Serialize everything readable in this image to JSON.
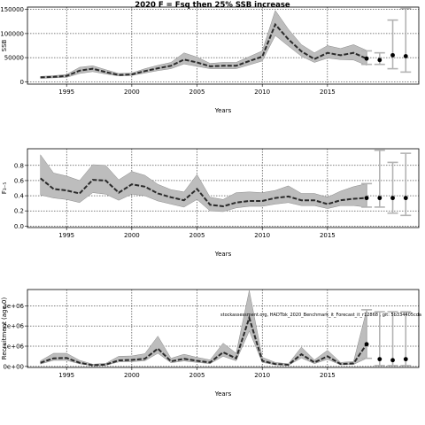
{
  "chart_data": [
    {
      "type": "line",
      "title": "2020 F = Fsq then 25% SSB increase",
      "ylabel": "SSB",
      "xlabel": "Years",
      "xlim": [
        1992,
        2022
      ],
      "ylim": [
        -5000,
        155000
      ],
      "x_ticks": [
        1995,
        2000,
        2005,
        2010,
        2015
      ],
      "y_ticks": [
        0,
        50000,
        100000,
        150000
      ],
      "y_tick_labels": [
        "0",
        "50000",
        "100000",
        "150000"
      ],
      "grid": true,
      "x": [
        1993,
        1994,
        1995,
        1996,
        1997,
        1998,
        1999,
        2000,
        2001,
        2002,
        2003,
        2004,
        2005,
        2006,
        2007,
        2008,
        2009,
        2010,
        2011,
        2012,
        2013,
        2014,
        2015,
        2016,
        2017,
        2018
      ],
      "median": [
        9000,
        10000,
        12000,
        23000,
        27000,
        20000,
        14000,
        15000,
        22000,
        28000,
        33000,
        46000,
        40000,
        32000,
        33000,
        33000,
        43000,
        52000,
        119000,
        88000,
        63000,
        47000,
        60000,
        55000,
        60000,
        48000
      ],
      "lower": [
        7000,
        8000,
        9000,
        17000,
        21000,
        16000,
        12000,
        13000,
        18000,
        23000,
        27000,
        37000,
        32000,
        27000,
        27000,
        27000,
        35000,
        43000,
        96000,
        74000,
        53000,
        40000,
        49000,
        46000,
        45000,
        34000
      ],
      "upper": [
        11000,
        12500,
        15000,
        30000,
        33000,
        25000,
        17000,
        18000,
        27000,
        34000,
        40000,
        60000,
        51000,
        38000,
        40000,
        40000,
        52000,
        64000,
        148000,
        109000,
        77000,
        60000,
        75000,
        69000,
        77000,
        65000
      ],
      "projection": [
        {
          "x": 2018,
          "median": 48000,
          "lower": 36000,
          "upper": 64000
        },
        {
          "x": 2019,
          "median": 45000,
          "lower": 36000,
          "upper": 60000
        },
        {
          "x": 2020,
          "median": 55000,
          "lower": 27000,
          "upper": 128000
        },
        {
          "x": 2021,
          "median": 53000,
          "lower": 20000,
          "upper": 152000
        }
      ]
    },
    {
      "type": "line",
      "title": "",
      "ylabel": "F₃₋₅",
      "xlabel": "Years",
      "xlim": [
        1992,
        2022
      ],
      "ylim": [
        -0.02,
        1.02
      ],
      "x_ticks": [
        1995,
        2000,
        2005,
        2010,
        2015
      ],
      "y_ticks": [
        0.0,
        0.2,
        0.4,
        0.6,
        0.8
      ],
      "y_tick_labels": [
        "0.0",
        "0.2",
        "0.4",
        "0.6",
        "0.8"
      ],
      "grid": true,
      "x": [
        1993,
        1994,
        1995,
        1996,
        1997,
        1998,
        1999,
        2000,
        2001,
        2002,
        2003,
        2004,
        2005,
        2006,
        2007,
        2008,
        2009,
        2010,
        2011,
        2012,
        2013,
        2014,
        2015,
        2016,
        2017,
        2018
      ],
      "median": [
        0.63,
        0.49,
        0.47,
        0.43,
        0.61,
        0.6,
        0.44,
        0.55,
        0.52,
        0.43,
        0.38,
        0.34,
        0.49,
        0.28,
        0.26,
        0.31,
        0.33,
        0.33,
        0.37,
        0.39,
        0.34,
        0.34,
        0.29,
        0.34,
        0.36,
        0.37
      ],
      "lower": [
        0.41,
        0.37,
        0.35,
        0.31,
        0.44,
        0.42,
        0.34,
        0.42,
        0.4,
        0.33,
        0.29,
        0.25,
        0.35,
        0.2,
        0.19,
        0.24,
        0.26,
        0.26,
        0.29,
        0.31,
        0.27,
        0.27,
        0.23,
        0.27,
        0.27,
        0.25
      ],
      "upper": [
        0.94,
        0.7,
        0.66,
        0.6,
        0.81,
        0.8,
        0.61,
        0.72,
        0.67,
        0.55,
        0.48,
        0.45,
        0.68,
        0.38,
        0.35,
        0.44,
        0.45,
        0.44,
        0.47,
        0.53,
        0.43,
        0.43,
        0.38,
        0.46,
        0.52,
        0.56
      ],
      "projection": [
        {
          "x": 2018,
          "median": 0.37,
          "lower": 0.25,
          "upper": 0.56
        },
        {
          "x": 2019,
          "median": 0.37,
          "lower": 0.25,
          "upper": 1.0
        },
        {
          "x": 2020,
          "median": 0.37,
          "lower": 0.17,
          "upper": 0.84
        },
        {
          "x": 2021,
          "median": 0.37,
          "lower": 0.14,
          "upper": 0.96
        }
      ]
    },
    {
      "type": "line",
      "title": "",
      "ylabel": "Recruitment (age 0)",
      "xlabel": "Years",
      "xlim": [
        1992,
        2022
      ],
      "ylim": [
        -50000,
        3800000
      ],
      "x_ticks": [
        1995,
        2000,
        2005,
        2010,
        2015
      ],
      "y_ticks": [
        0,
        1000000,
        2000000,
        3000000
      ],
      "y_tick_labels": [
        "0e+00",
        "1e+06",
        "2e+06",
        "3e+06"
      ],
      "grid": true,
      "annotation": "stockassessment.org, HADTbk_2020_Benchmark_it_Forecast_it_r12868 , git: 5b334405cda",
      "x": [
        1993,
        1994,
        1995,
        1996,
        1997,
        1998,
        1999,
        2000,
        2001,
        2002,
        2003,
        2004,
        2005,
        2006,
        2007,
        2008,
        2009,
        2010,
        2011,
        2012,
        2013,
        2014,
        2015,
        2016,
        2017,
        2018
      ],
      "median": [
        180000,
        400000,
        420000,
        180000,
        60000,
        90000,
        300000,
        320000,
        380000,
        880000,
        250000,
        380000,
        280000,
        200000,
        700000,
        400000,
        2400000,
        280000,
        120000,
        80000,
        600000,
        200000,
        500000,
        120000,
        150000,
        1100000
      ],
      "lower": [
        120000,
        300000,
        300000,
        130000,
        40000,
        60000,
        220000,
        240000,
        280000,
        650000,
        180000,
        270000,
        200000,
        140000,
        500000,
        280000,
        1750000,
        200000,
        80000,
        55000,
        420000,
        140000,
        350000,
        80000,
        100000,
        400000
      ],
      "upper": [
        280000,
        650000,
        650000,
        300000,
        110000,
        150000,
        500000,
        520000,
        630000,
        1500000,
        400000,
        600000,
        450000,
        320000,
        1150000,
        650000,
        3750000,
        450000,
        200000,
        130000,
        950000,
        320000,
        800000,
        200000,
        240000,
        2800000
      ],
      "projection": [
        {
          "x": 2018,
          "median": 1100000,
          "lower": 400000,
          "upper": 2800000
        },
        {
          "x": 2019,
          "median": 360000,
          "lower": 40000,
          "upper": 2700000
        },
        {
          "x": 2020,
          "median": 310000,
          "lower": 40000,
          "upper": 2700000
        },
        {
          "x": 2021,
          "median": 360000,
          "lower": 40000,
          "upper": 2700000
        }
      ]
    }
  ],
  "style": {
    "band_color": "#bdbdbd",
    "band_edge_color": "#8c8c8c",
    "median_color": "#2a2a2a",
    "projection_bar_color": "#b3b3b3",
    "point_color": "#000000",
    "grid_color": "#000000"
  }
}
